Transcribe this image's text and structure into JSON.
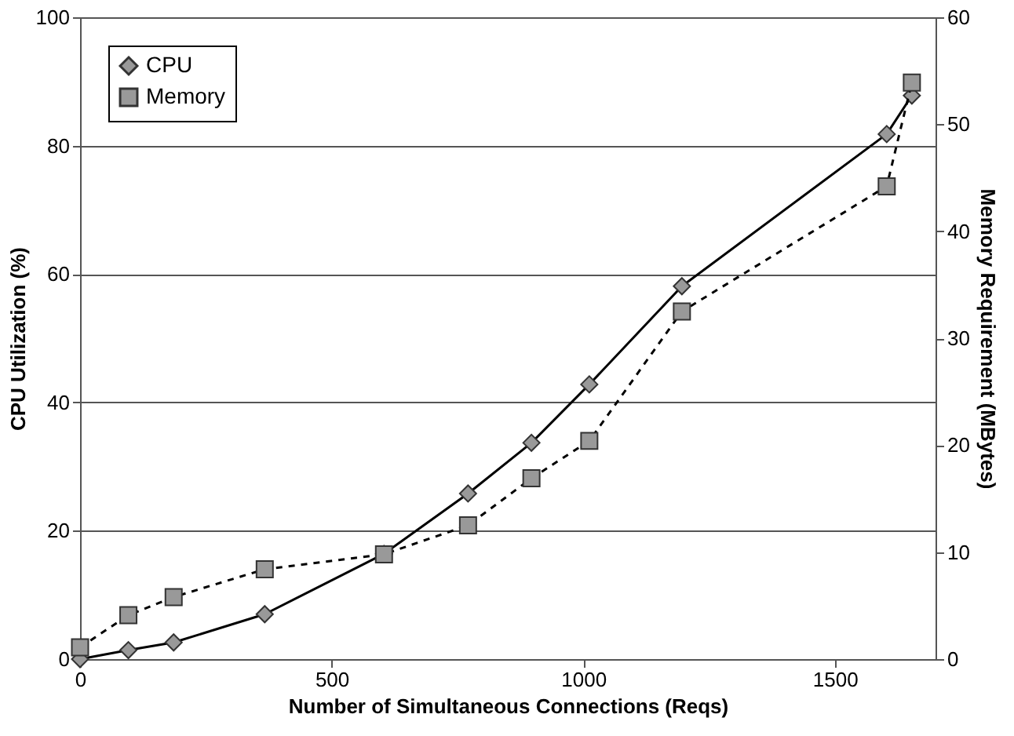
{
  "chart_data": {
    "type": "line",
    "xlabel": "Number of Simultaneous Connections (Reqs)",
    "ylabel": "CPU Utilization (%)",
    "y2label": "Memory Requirement (MBytes)",
    "x": [
      0,
      96,
      186,
      367,
      604,
      771,
      897,
      1012,
      1196,
      1603,
      1653
    ],
    "series": [
      {
        "name": "CPU",
        "color": "#999999",
        "marker": "diamond",
        "line_style": "solid",
        "values": [
          0,
          1.4,
          2.6,
          7.0,
          16.4,
          25.8,
          33.7,
          42.8,
          58.1,
          81.8,
          87.8
        ]
      },
      {
        "name": "Memory",
        "color": "#999999",
        "marker": "square",
        "line_style": "dashed",
        "axis": "y2",
        "values": [
          1.1,
          4.1,
          5.8,
          8.4,
          9.8,
          12.5,
          16.9,
          20.4,
          32.5,
          44.2,
          53.9
        ]
      }
    ],
    "xlim": [
      0,
      1700
    ],
    "xticks": [
      0,
      500,
      1000,
      1500
    ],
    "ylim": [
      0,
      100
    ],
    "yticks": [
      0,
      20,
      40,
      60,
      80,
      100
    ],
    "y2lim": [
      0,
      60
    ],
    "y2ticks": [
      0,
      10,
      20,
      30,
      40,
      50,
      60
    ],
    "grid": "y",
    "legend": "top left"
  }
}
